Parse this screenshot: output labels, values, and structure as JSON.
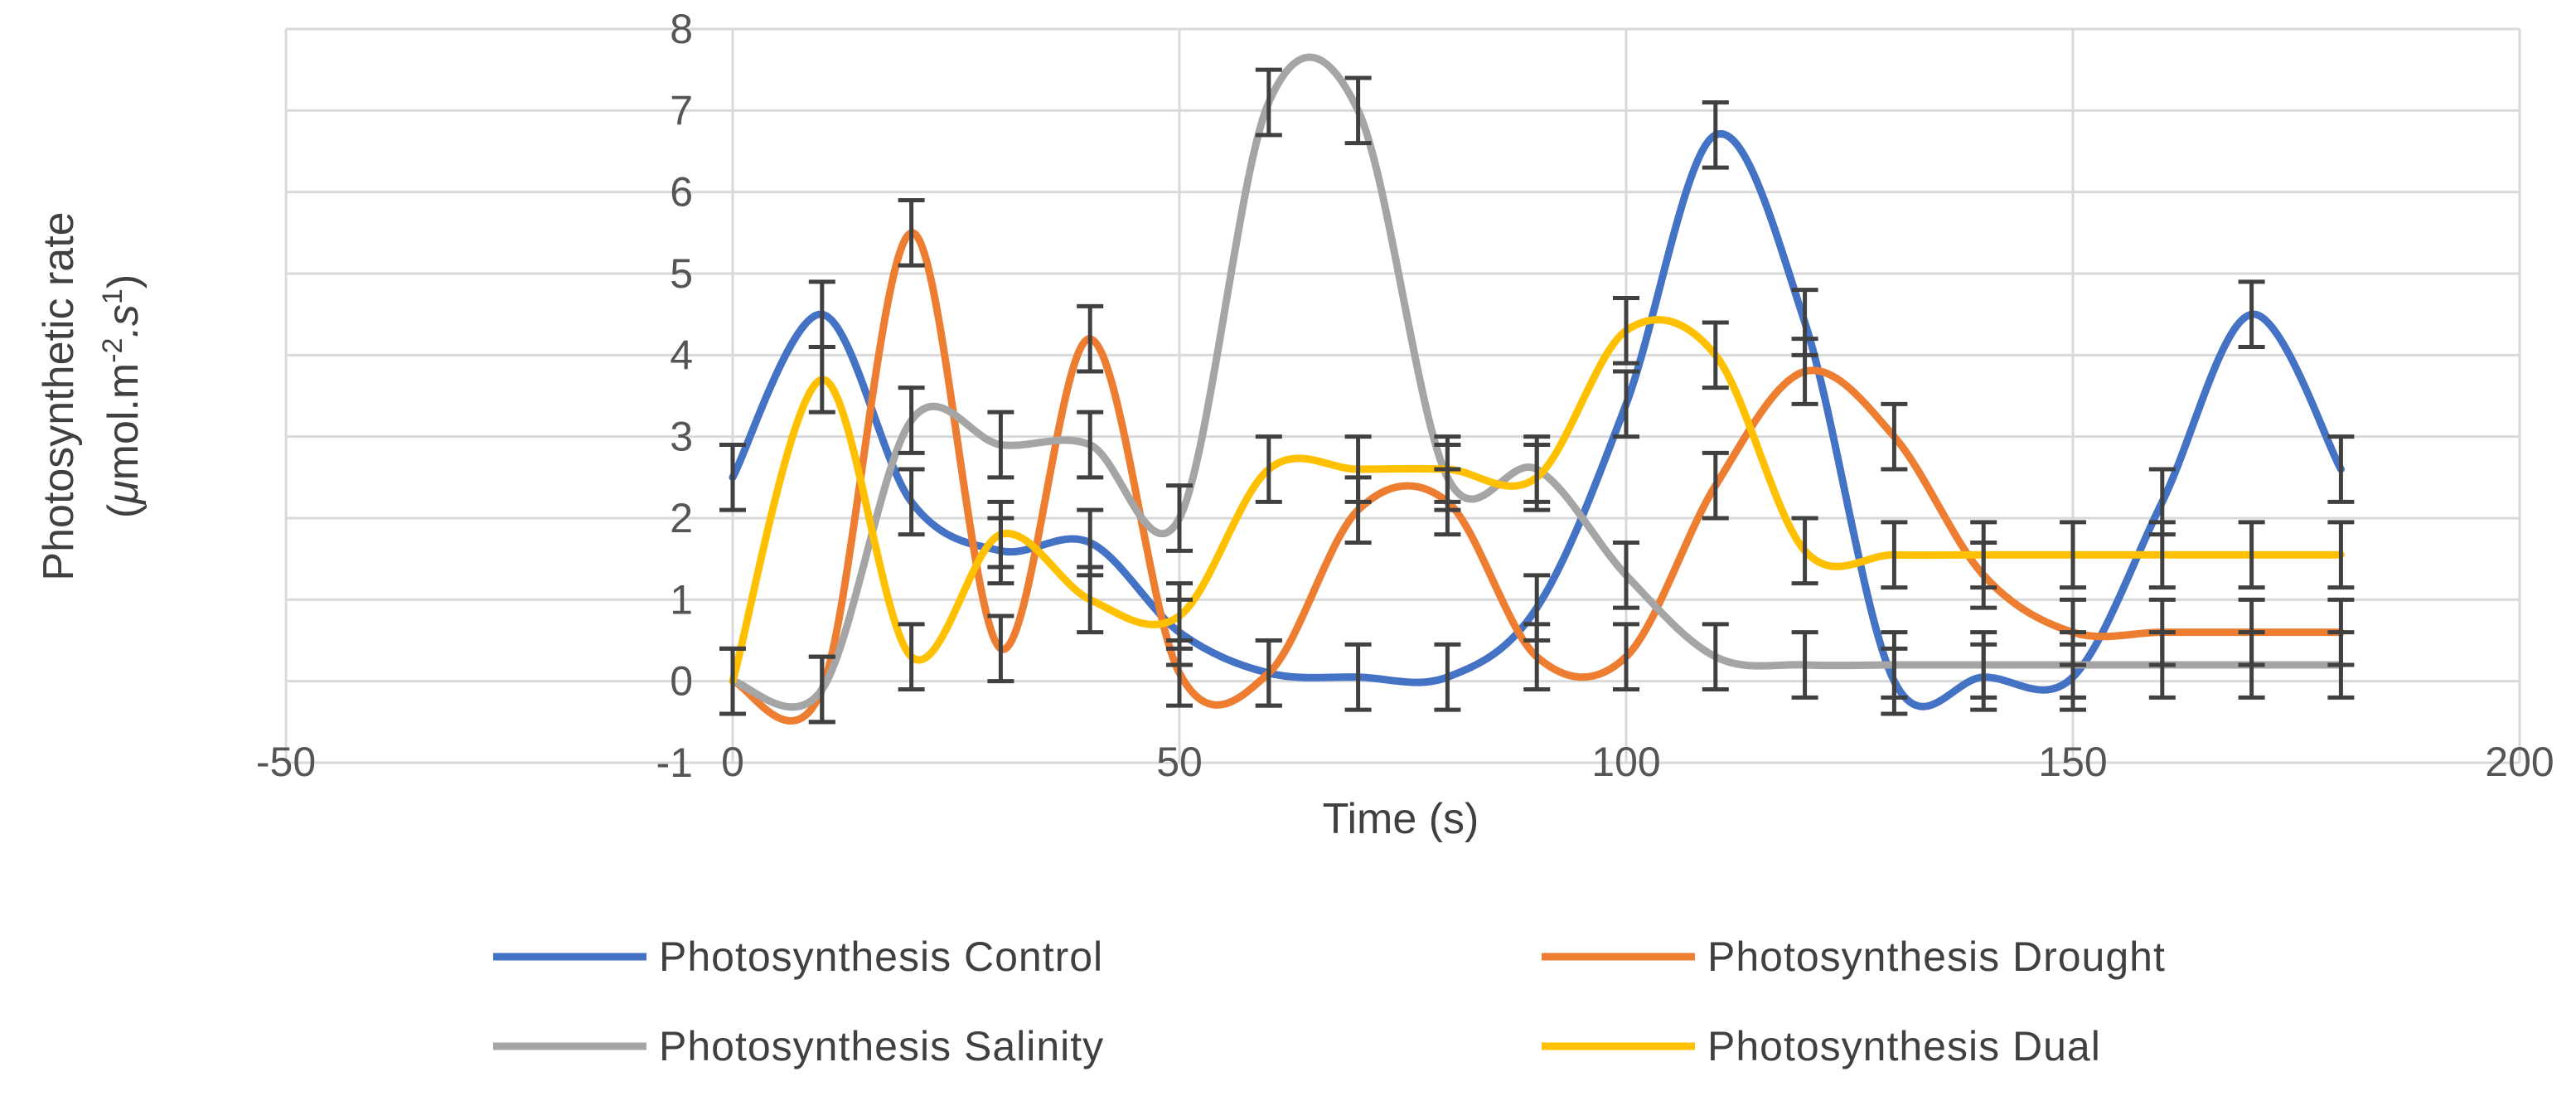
{
  "chart_data": {
    "type": "line",
    "title": "",
    "xlabel": "Time (s)",
    "ylabel_line1": "Photosynthetic rate",
    "ylabel_line2_parts": [
      "(",
      "μ",
      "mol.m",
      "-2",
      ".s",
      "1",
      ")"
    ],
    "xlim": [
      -50,
      200
    ],
    "ylim": [
      -1,
      8
    ],
    "x_ticks": [
      -50,
      0,
      50,
      100,
      150,
      200
    ],
    "y_ticks": [
      -1,
      0,
      1,
      2,
      3,
      4,
      5,
      6,
      7,
      8
    ],
    "x_tick_labels": [
      "-50",
      "0",
      "50",
      "100",
      "150",
      "200"
    ],
    "y_tick_labels": [
      "-1",
      "0",
      "1",
      "2",
      "3",
      "4",
      "5",
      "6",
      "7",
      "8"
    ],
    "grid": true,
    "smooth": true,
    "error_bar": 0.4,
    "legend_position": "bottom",
    "x": [
      0,
      10,
      20,
      30,
      40,
      50,
      60,
      70,
      80,
      90,
      100,
      110,
      120,
      130,
      140,
      150,
      160,
      170,
      180
    ],
    "series": [
      {
        "name": "Photosynthesis Control",
        "color": "#4472C4",
        "values": [
          2.5,
          4.5,
          2.2,
          1.6,
          1.7,
          0.6,
          0.1,
          0.05,
          0.05,
          0.9,
          3.4,
          6.7,
          4.4,
          0.0,
          0.05,
          0.05,
          2.2,
          4.5,
          2.6
        ]
      },
      {
        "name": "Photosynthesis Drought",
        "color": "#ED7D31",
        "values": [
          0.0,
          -0.1,
          5.5,
          0.4,
          4.2,
          0.1,
          0.1,
          2.1,
          2.2,
          0.3,
          0.3,
          2.4,
          3.8,
          3.0,
          1.3,
          0.6,
          0.6,
          0.6,
          0.6
        ]
      },
      {
        "name": "Photosynthesis Salinity",
        "color": "#A5A5A5",
        "values": [
          0.0,
          -0.1,
          3.2,
          2.9,
          2.9,
          2.0,
          7.1,
          7.0,
          2.5,
          2.6,
          1.3,
          0.3,
          0.2,
          0.2,
          0.2,
          0.2,
          0.2,
          0.2,
          0.2
        ]
      },
      {
        "name": "Photosynthesis Dual",
        "color": "#FFC000",
        "values": [
          0.0,
          3.7,
          0.3,
          1.8,
          1.0,
          0.8,
          2.6,
          2.6,
          2.6,
          2.5,
          4.3,
          4.0,
          1.6,
          1.55,
          1.55,
          1.55,
          1.55,
          1.55,
          1.55
        ]
      }
    ]
  },
  "colors": {
    "grid": "#D9D9D9",
    "error_bar": "#404040",
    "text": "#404040"
  }
}
